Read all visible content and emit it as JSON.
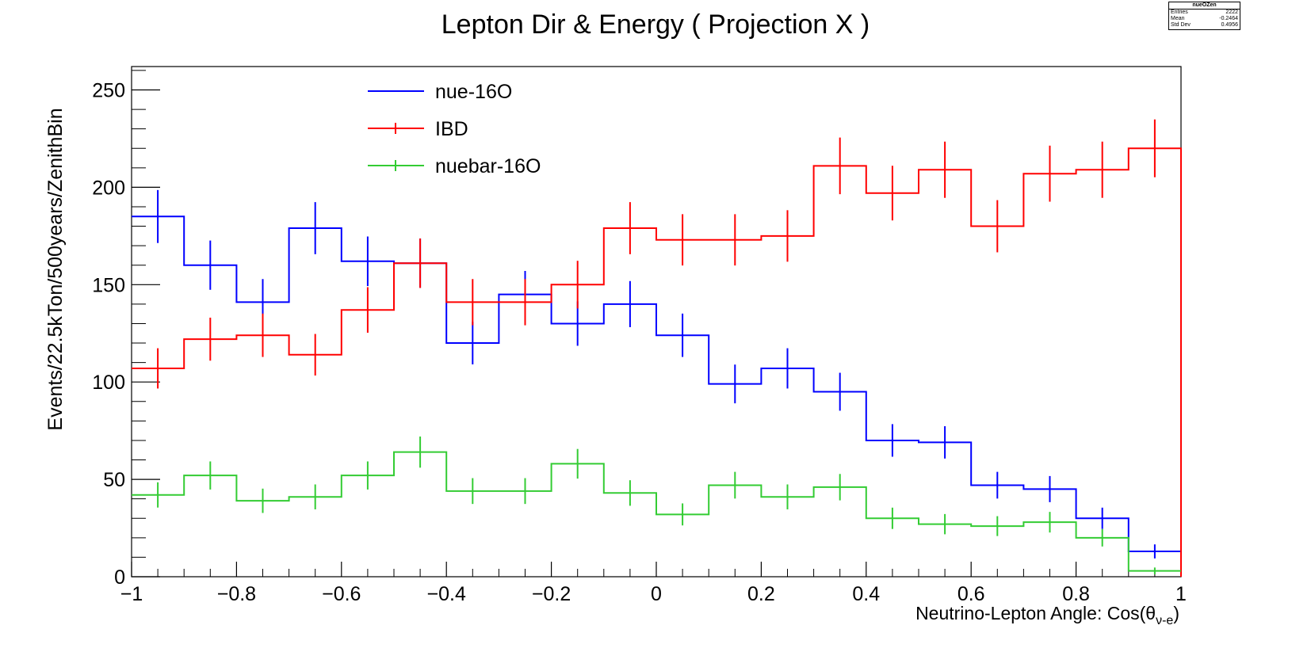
{
  "chart_data": {
    "type": "histogram-step",
    "title": "Lepton Dir & Energy ( Projection X )",
    "xlabel": "Neutrino-Lepton Angle: Cos(θν-e)",
    "ylabel": "Events/22.5kTon/500years/ZenithBin",
    "xlim": [
      -1,
      1
    ],
    "ylim": [
      0,
      262
    ],
    "x_ticks": [
      "−1",
      "−0.8",
      "−0.6",
      "−0.4",
      "−0.2",
      "0",
      "0.2",
      "0.4",
      "0.6",
      "0.8",
      "1"
    ],
    "y_ticks": [
      "0",
      "50",
      "100",
      "150",
      "200",
      "250"
    ],
    "bin_edges": [
      -1.0,
      -0.9,
      -0.8,
      -0.7,
      -0.6,
      -0.5,
      -0.4,
      -0.3,
      -0.2,
      -0.1,
      0.0,
      0.1,
      0.2,
      0.3,
      0.4,
      0.5,
      0.6,
      0.7,
      0.8,
      0.9,
      1.0
    ],
    "series": [
      {
        "name": "nue-16O",
        "color": "#0000ff",
        "values": [
          185,
          160,
          141,
          179,
          162,
          161,
          120,
          145,
          130,
          140,
          124,
          99,
          107,
          95,
          70,
          69,
          47,
          45,
          30,
          13
        ]
      },
      {
        "name": "IBD",
        "color": "#ff0000",
        "values": [
          107,
          122,
          124,
          114,
          137,
          161,
          141,
          141,
          150,
          179,
          173,
          173,
          175,
          211,
          197,
          209,
          180,
          207,
          209,
          220
        ]
      },
      {
        "name": "nuebar-16O",
        "color": "#33cc33",
        "values": [
          42,
          52,
          39,
          41,
          52,
          64,
          44,
          44,
          58,
          43,
          32,
          47,
          41,
          46,
          30,
          27,
          26,
          28,
          20,
          3
        ]
      }
    ],
    "legend": "top-left-inside",
    "stats": {
      "name": "nueOZen",
      "rows": [
        {
          "label": "Entries",
          "value": "2222"
        },
        {
          "label": "Mean",
          "value": "-0.2464"
        },
        {
          "label": "Std Dev",
          "value": "0.4956"
        }
      ]
    }
  }
}
